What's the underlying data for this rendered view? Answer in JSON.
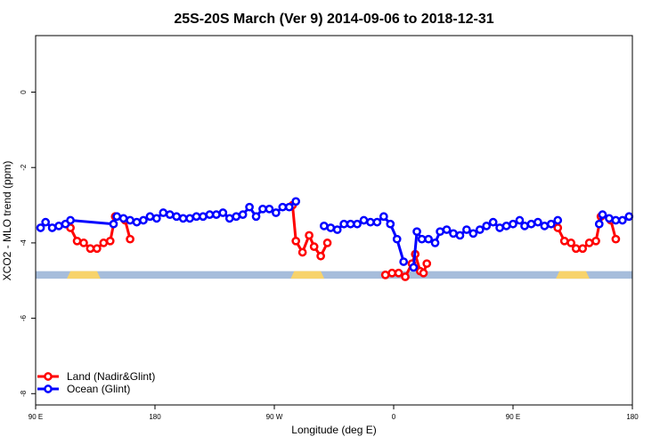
{
  "chart_data": {
    "type": "line",
    "title": "25S-20S March (Ver 9)   2014-09-06 to 2018-12-31",
    "xlabel": "Longitude (deg E)",
    "ylabel": "XCO2 - MLO trend (ppm)",
    "xlim": [
      90,
      450
    ],
    "ylim": [
      -8.3,
      1.5
    ],
    "x_tick_values": [
      90,
      162,
      234,
      306,
      378,
      450
    ],
    "x_tick_labels": [
      "90 E",
      "180",
      "90 W",
      "0",
      "90 E",
      "180"
    ],
    "y_tick_values": [
      0,
      -2,
      -4,
      -6,
      -8
    ],
    "y_tick_labels": [
      "0",
      "-2",
      "-4",
      "-6",
      "-8"
    ],
    "grid": false,
    "legend_position": "bottom-left",
    "legend": [
      "Land (Nadir&Glint)",
      "Ocean (Glint)"
    ],
    "colors": {
      "land": "#ff0000",
      "ocean": "#0000ff",
      "ocean_band": "#a6bddb",
      "land_band": "#f7d36b"
    },
    "surface_band": {
      "y_range": [
        -4.95,
        -4.75
      ],
      "land_segments": [
        [
          111,
          127
        ],
        [
          246,
          262
        ],
        [
          406,
          422
        ]
      ]
    },
    "series": [
      {
        "name": "Land (Nadir&Glint)",
        "color": "#ff0000",
        "segments": [
          [
            [
              111,
              -3.6
            ],
            [
              115,
              -3.95
            ],
            [
              119,
              -4.0
            ],
            [
              123,
              -4.15
            ],
            [
              127,
              -4.15
            ],
            [
              131,
              -4.0
            ],
            [
              135,
              -3.95
            ],
            [
              138,
              -3.3
            ]
          ],
          [
            [
              144,
              -3.4
            ],
            [
              147,
              -3.9
            ]
          ],
          [
            [
              245,
              -3.0
            ],
            [
              247,
              -3.95
            ],
            [
              251,
              -4.25
            ],
            [
              255,
              -3.8
            ],
            [
              258,
              -4.1
            ],
            [
              262,
              -4.35
            ],
            [
              266,
              -4.0
            ]
          ],
          [
            [
              301,
              -4.85
            ],
            [
              305,
              -4.8
            ],
            [
              309,
              -4.8
            ],
            [
              313,
              -4.9
            ],
            [
              317,
              -4.55
            ],
            [
              319,
              -4.3
            ],
            [
              322,
              -4.75
            ],
            [
              324,
              -4.8
            ],
            [
              326,
              -4.55
            ]
          ],
          [
            [
              405,
              -3.6
            ],
            [
              409,
              -3.95
            ],
            [
              413,
              -4.0
            ],
            [
              416,
              -4.15
            ],
            [
              420,
              -4.15
            ],
            [
              424,
              -4.0
            ],
            [
              428,
              -3.95
            ],
            [
              431,
              -3.3
            ]
          ],
          [
            [
              437,
              -3.4
            ],
            [
              440,
              -3.9
            ]
          ]
        ]
      },
      {
        "name": "Ocean (Glint)",
        "color": "#0000ff",
        "segments": [
          [
            [
              93,
              -3.6
            ],
            [
              96,
              -3.45
            ],
            [
              100,
              -3.6
            ],
            [
              104,
              -3.55
            ],
            [
              108,
              -3.5
            ],
            [
              111,
              -3.4
            ],
            [
              137,
              -3.5
            ],
            [
              139,
              -3.3
            ],
            [
              143,
              -3.35
            ],
            [
              147,
              -3.4
            ],
            [
              151,
              -3.45
            ],
            [
              155,
              -3.4
            ],
            [
              159,
              -3.3
            ],
            [
              163,
              -3.35
            ],
            [
              167,
              -3.2
            ],
            [
              171,
              -3.25
            ],
            [
              175,
              -3.3
            ],
            [
              179,
              -3.35
            ],
            [
              183,
              -3.35
            ],
            [
              187,
              -3.3
            ],
            [
              191,
              -3.3
            ],
            [
              195,
              -3.25
            ],
            [
              199,
              -3.25
            ],
            [
              203,
              -3.2
            ],
            [
              207,
              -3.35
            ],
            [
              211,
              -3.3
            ],
            [
              215,
              -3.25
            ],
            [
              219,
              -3.05
            ],
            [
              223,
              -3.3
            ],
            [
              227,
              -3.1
            ],
            [
              231,
              -3.1
            ],
            [
              235,
              -3.2
            ],
            [
              239,
              -3.05
            ],
            [
              243,
              -3.05
            ],
            [
              247,
              -2.9
            ]
          ],
          [
            [
              264,
              -3.55
            ],
            [
              268,
              -3.6
            ],
            [
              272,
              -3.65
            ],
            [
              276,
              -3.5
            ],
            [
              280,
              -3.5
            ],
            [
              284,
              -3.5
            ],
            [
              288,
              -3.4
            ],
            [
              292,
              -3.45
            ],
            [
              296,
              -3.45
            ],
            [
              300,
              -3.3
            ],
            [
              304,
              -3.5
            ],
            [
              308,
              -3.9
            ],
            [
              312,
              -4.5
            ]
          ],
          [
            [
              318,
              -4.65
            ],
            [
              320,
              -3.7
            ],
            [
              323,
              -3.9
            ],
            [
              327,
              -3.9
            ],
            [
              331,
              -4.0
            ],
            [
              334,
              -3.7
            ],
            [
              338,
              -3.65
            ],
            [
              342,
              -3.75
            ],
            [
              346,
              -3.8
            ],
            [
              350,
              -3.65
            ],
            [
              354,
              -3.75
            ],
            [
              358,
              -3.65
            ],
            [
              362,
              -3.55
            ],
            [
              366,
              -3.45
            ],
            [
              370,
              -3.6
            ],
            [
              374,
              -3.55
            ],
            [
              378,
              -3.5
            ],
            [
              382,
              -3.4
            ],
            [
              385,
              -3.55
            ],
            [
              389,
              -3.5
            ],
            [
              393,
              -3.45
            ],
            [
              397,
              -3.55
            ],
            [
              401,
              -3.5
            ],
            [
              405,
              -3.4
            ]
          ],
          [
            [
              430,
              -3.5
            ],
            [
              432,
              -3.25
            ],
            [
              436,
              -3.35
            ],
            [
              440,
              -3.4
            ],
            [
              444,
              -3.4
            ],
            [
              448,
              -3.3
            ]
          ]
        ]
      }
    ]
  }
}
